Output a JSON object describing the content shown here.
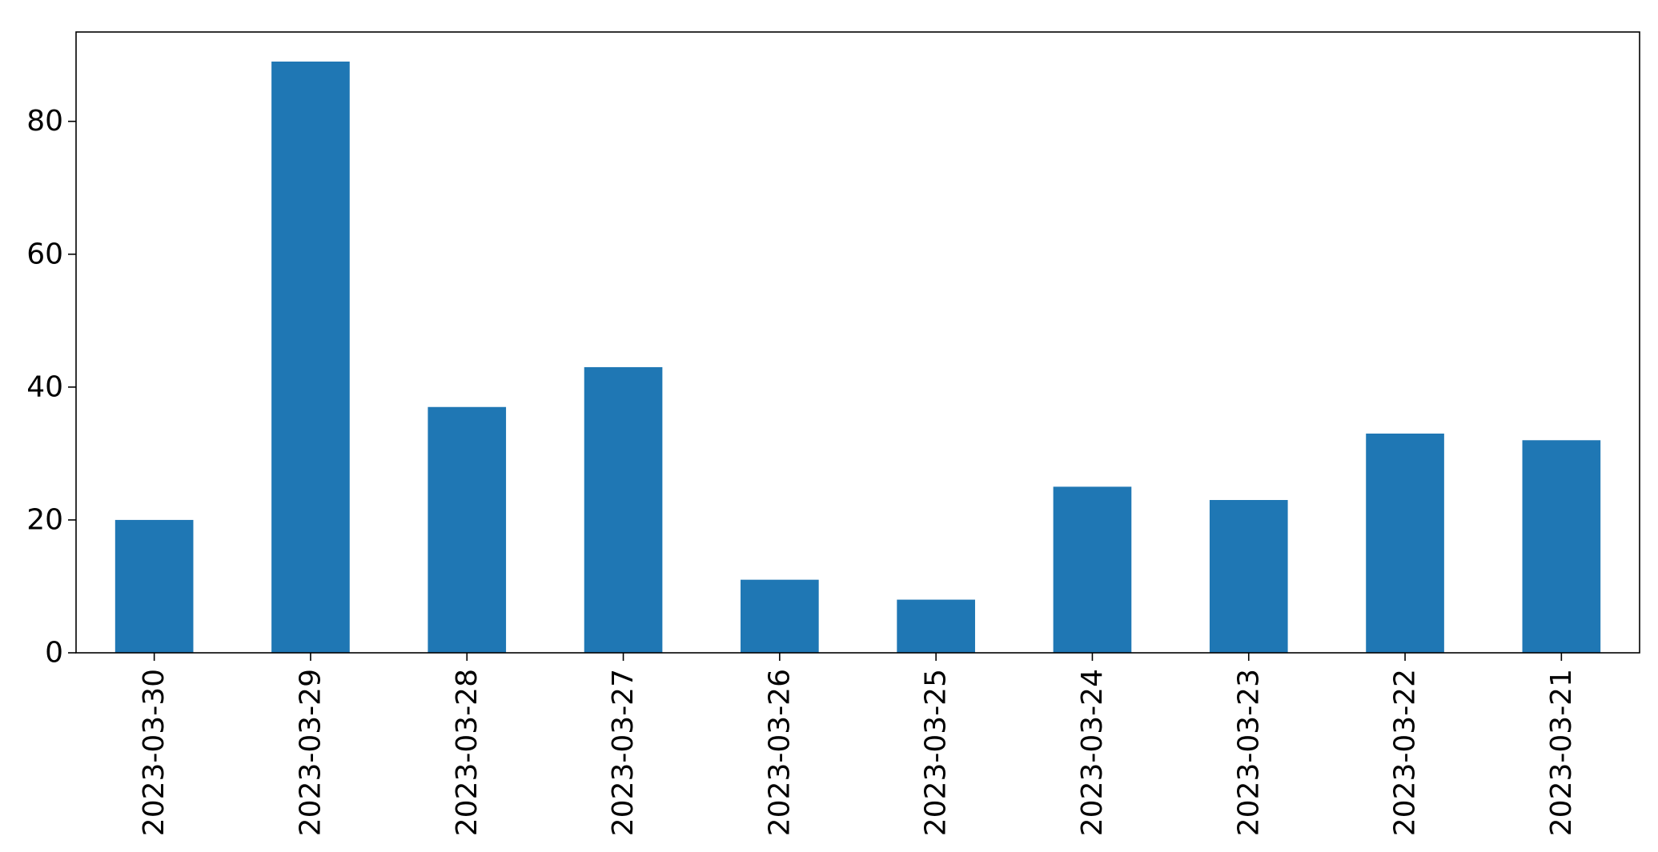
{
  "chart_data": {
    "type": "bar",
    "title": "",
    "xlabel": "",
    "ylabel": "",
    "categories": [
      "2023-03-30",
      "2023-03-29",
      "2023-03-28",
      "2023-03-27",
      "2023-03-26",
      "2023-03-25",
      "2023-03-24",
      "2023-03-23",
      "2023-03-22",
      "2023-03-21"
    ],
    "values": [
      20,
      89,
      37,
      43,
      11,
      8,
      25,
      23,
      33,
      32
    ],
    "ylim": [
      0,
      93.45
    ],
    "yticks": [
      0,
      20,
      40,
      60,
      80
    ],
    "grid": false,
    "legend": "none",
    "bar_color": "#1f77b4",
    "axis_color": "#000000"
  }
}
